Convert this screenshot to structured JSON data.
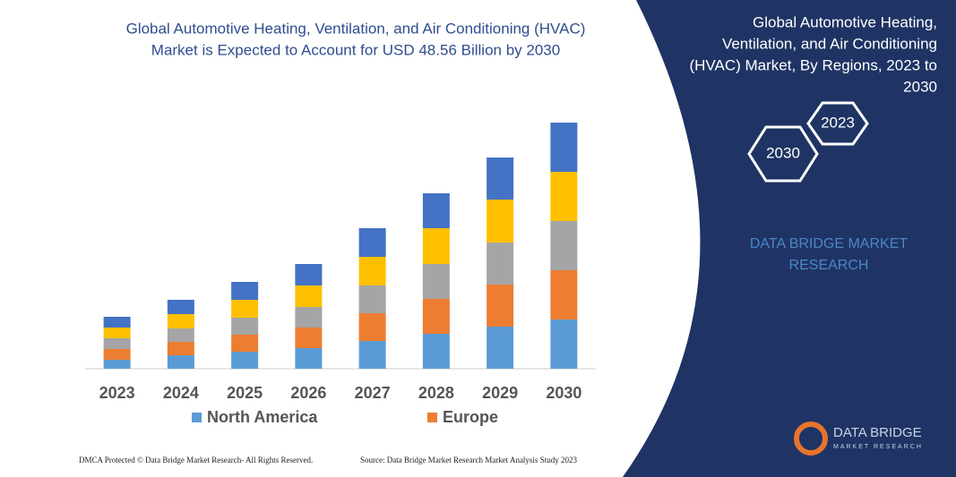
{
  "chart_data": {
    "type": "stacked_bar",
    "title": [
      "Global Automotive Heating, Ventilation, and Air Conditioning (HVAC)",
      "Market is Expected to Account for USD 48.56 Billion by 2030"
    ],
    "categories": [
      "2023",
      "2024",
      "2025",
      "2026",
      "2027",
      "2028",
      "2029",
      "2030"
    ],
    "series": [
      {
        "name": "North America",
        "color": "#5b9bd5",
        "values": [
          10,
          15,
          19,
          23,
          31,
          39,
          47,
          55
        ]
      },
      {
        "name": "Europe",
        "color": "#ed7d31",
        "values": [
          12,
          15,
          19,
          23,
          31,
          39,
          47,
          55
        ]
      },
      {
        "color": "#a5a5a5",
        "values": [
          12,
          15,
          19,
          23,
          31,
          39,
          47,
          55
        ]
      },
      {
        "color": "#ffc000",
        "values": [
          12,
          16,
          20,
          24,
          32,
          40,
          48,
          55
        ]
      },
      {
        "color": "#4472c4",
        "values": [
          12,
          16,
          20,
          24,
          32,
          39,
          47,
          55
        ]
      }
    ]
  },
  "side_panel": {
    "title": [
      "Global Automotive Heating,",
      "Ventilation, and Air Conditioning",
      "(HVAC) Market, By Regions, 2023 to",
      "2030"
    ],
    "hexagons": [
      "2023",
      "2030"
    ],
    "brand": [
      "DATA BRIDGE MARKET",
      "RESEARCH"
    ]
  },
  "logo": {
    "name": "DATA BRIDGE",
    "tagline": "MARKET RESEARCH"
  },
  "footer": {
    "left": "DMCA Protected © Data Bridge Market Research-  All Rights Reserved.",
    "right": "Source: Data Bridge Market Research  Market Analysis Study 2023"
  }
}
